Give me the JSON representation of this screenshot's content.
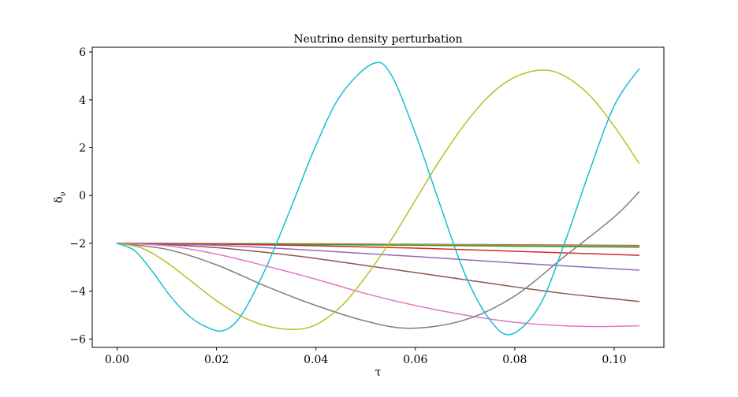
{
  "chart_data": {
    "type": "line",
    "title": "Neutrino density perturbation",
    "xlabel": "τ",
    "ylabel_base": "δ",
    "ylabel_sub": "ν",
    "xlim": [
      -0.005,
      0.11
    ],
    "ylim": [
      -6.35,
      6.2
    ],
    "xticks": [
      0.0,
      0.02,
      0.04,
      0.06,
      0.08,
      0.1
    ],
    "xtick_labels": [
      "0.00",
      "0.02",
      "0.04",
      "0.06",
      "0.08",
      "0.10"
    ],
    "yticks": [
      -6,
      -4,
      -2,
      0,
      2,
      4,
      6
    ],
    "ytick_labels": [
      "−6",
      "−4",
      "−2",
      "0",
      "2",
      "4",
      "6"
    ],
    "grid": false,
    "series": [
      {
        "color": "#1f77b4",
        "x": [
          0,
          0.02,
          0.04,
          0.06,
          0.08,
          0.105
        ],
        "y": [
          -2,
          -2.01,
          -2.02,
          -2.04,
          -2.06,
          -2.09
        ]
      },
      {
        "color": "#ff7f0e",
        "x": [
          0,
          0.02,
          0.04,
          0.06,
          0.08,
          0.105
        ],
        "y": [
          -2,
          -2.01,
          -2.03,
          -2.05,
          -2.08,
          -2.11
        ]
      },
      {
        "color": "#2ca02c",
        "x": [
          0,
          0.02,
          0.04,
          0.06,
          0.08,
          0.105
        ],
        "y": [
          -2,
          -2.02,
          -2.05,
          -2.08,
          -2.12,
          -2.16
        ]
      },
      {
        "color": "#d62728",
        "x": [
          0,
          0.02,
          0.04,
          0.06,
          0.08,
          0.105
        ],
        "y": [
          -2,
          -2.03,
          -2.1,
          -2.2,
          -2.33,
          -2.5
        ]
      },
      {
        "color": "#9467bd",
        "x": [
          0,
          0.02,
          0.04,
          0.06,
          0.08,
          0.105
        ],
        "y": [
          -2,
          -2.08,
          -2.3,
          -2.55,
          -2.82,
          -3.12
        ]
      },
      {
        "color": "#8c564b",
        "x": [
          0,
          0.01,
          0.02,
          0.03,
          0.04,
          0.05,
          0.06,
          0.07,
          0.08,
          0.09,
          0.105
        ],
        "y": [
          -2,
          -2.05,
          -2.18,
          -2.38,
          -2.63,
          -2.93,
          -3.22,
          -3.52,
          -3.82,
          -4.1,
          -4.43
        ]
      },
      {
        "color": "#e377c2",
        "x": [
          0,
          0.01,
          0.02,
          0.03,
          0.04,
          0.05,
          0.06,
          0.07,
          0.08,
          0.09,
          0.097,
          0.105
        ],
        "y": [
          -2,
          -2.1,
          -2.45,
          -2.95,
          -3.5,
          -4.1,
          -4.6,
          -5.0,
          -5.3,
          -5.45,
          -5.48,
          -5.45
        ]
      },
      {
        "color": "#7f7f7f",
        "x": [
          0,
          0.01,
          0.02,
          0.03,
          0.04,
          0.05,
          0.059,
          0.07,
          0.08,
          0.09,
          0.1,
          0.105
        ],
        "y": [
          -2,
          -2.25,
          -2.9,
          -3.8,
          -4.6,
          -5.25,
          -5.55,
          -5.2,
          -4.2,
          -2.55,
          -0.9,
          0.15
        ]
      },
      {
        "color": "#bcbd22",
        "x": [
          0,
          0.005,
          0.01,
          0.015,
          0.02,
          0.025,
          0.03,
          0.0355,
          0.04,
          0.045,
          0.05,
          0.055,
          0.06,
          0.065,
          0.07,
          0.075,
          0.08,
          0.0855,
          0.09,
          0.095,
          0.1,
          0.105
        ],
        "y": [
          -2,
          -2.2,
          -2.8,
          -3.6,
          -4.4,
          -5.05,
          -5.45,
          -5.6,
          -5.4,
          -4.65,
          -3.4,
          -1.9,
          -0.2,
          1.5,
          3.0,
          4.2,
          4.95,
          5.25,
          5.0,
          4.2,
          2.9,
          1.35
        ]
      },
      {
        "color": "#17becf",
        "x": [
          0,
          0.0035,
          0.007,
          0.0105,
          0.014,
          0.0175,
          0.0213,
          0.025,
          0.03,
          0.035,
          0.04,
          0.045,
          0.0513,
          0.055,
          0.06,
          0.065,
          0.07,
          0.075,
          0.0793,
          0.085,
          0.09,
          0.095,
          0.1,
          0.105
        ],
        "y": [
          -2,
          -2.3,
          -3.15,
          -4.15,
          -4.95,
          -5.45,
          -5.65,
          -5.0,
          -3.0,
          -0.5,
          2.1,
          4.2,
          5.5,
          5.1,
          2.6,
          -0.4,
          -3.3,
          -5.2,
          -5.8,
          -4.6,
          -2.0,
          1.0,
          3.75,
          5.3
        ]
      }
    ]
  }
}
